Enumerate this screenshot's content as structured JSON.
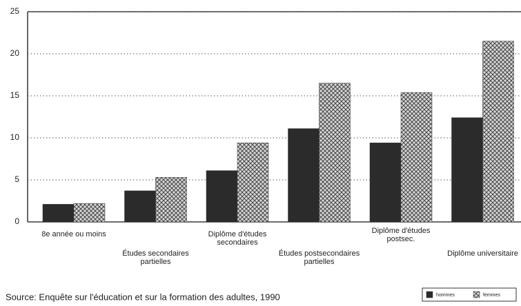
{
  "chart_data": {
    "type": "bar",
    "categories": [
      [
        "8e année ou moins"
      ],
      [
        "Études secondaires",
        "partielles"
      ],
      [
        "Diplôme d'études",
        "secondaires"
      ],
      [
        "Études postsecondaires",
        "partielles"
      ],
      [
        "Diplôme d'études",
        "postsec."
      ],
      [
        "Diplôme universitaire"
      ]
    ],
    "series": [
      {
        "name": "hommes",
        "color": "#2b2b2b",
        "values": [
          2.1,
          3.7,
          6.1,
          11.1,
          9.4,
          12.4
        ]
      },
      {
        "name": "femmes",
        "color": "#bdbdbd",
        "values": [
          2.2,
          5.3,
          9.4,
          16.5,
          15.4,
          21.5
        ]
      }
    ],
    "ylim": [
      0,
      25
    ],
    "yticks": [
      0,
      5,
      10,
      15,
      20,
      25
    ],
    "grid": true,
    "source": "Source:  Enquête sur l'éducation et sur la formation des adultes, 1990",
    "legend": "bottom-right"
  }
}
